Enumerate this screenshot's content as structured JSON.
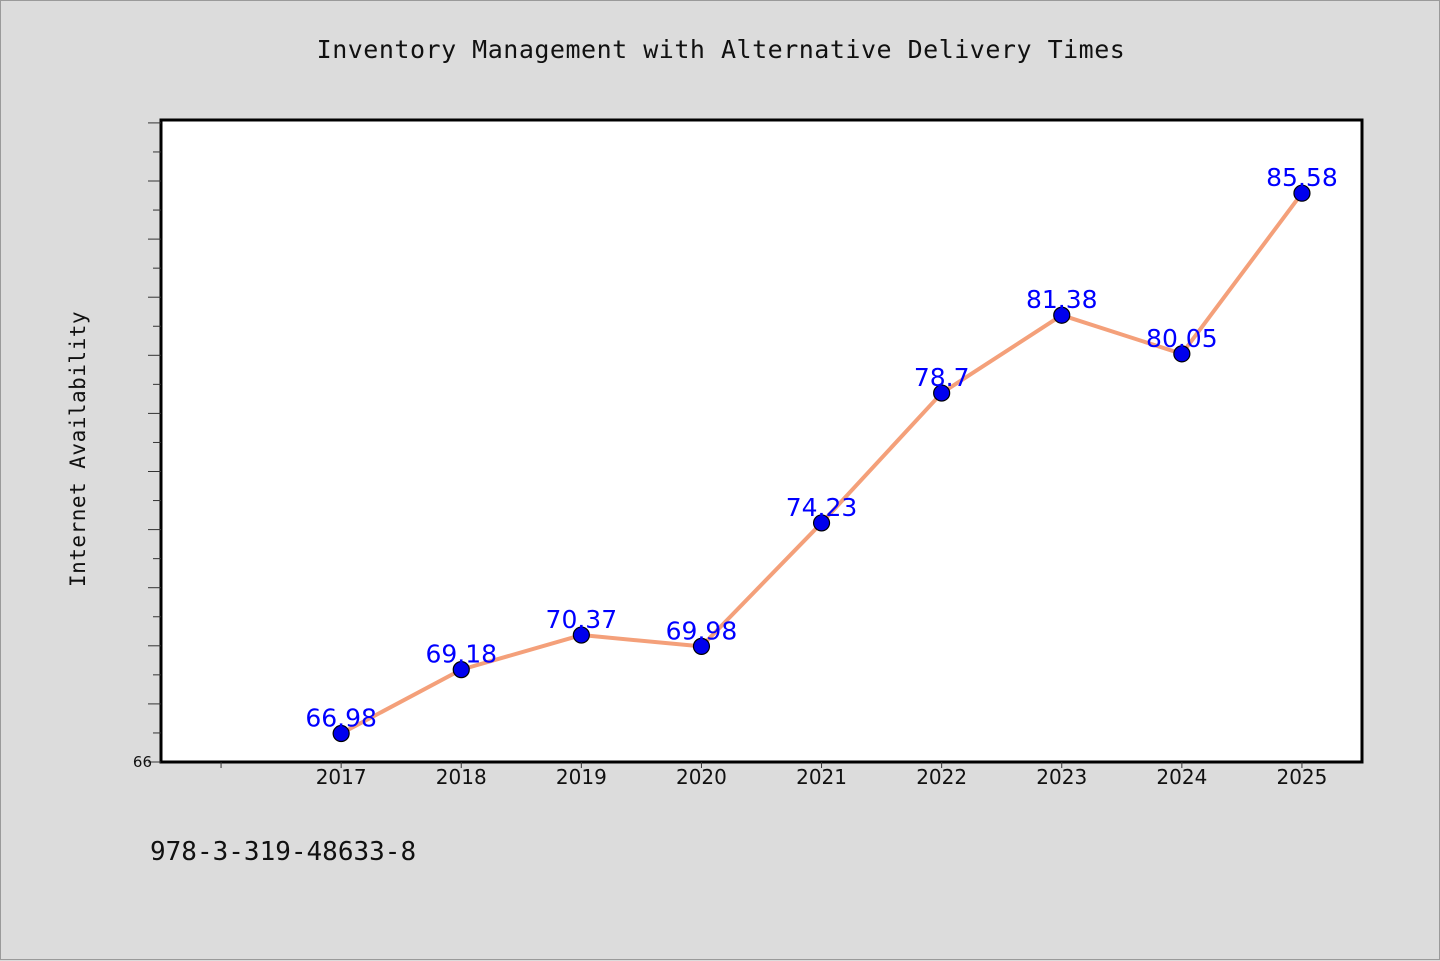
{
  "chart_data": {
    "type": "line",
    "title": "Inventory Management with Alternative Delivery Times",
    "xlabel": "",
    "ylabel": "Internet Availability",
    "categories": [
      "2017",
      "2018",
      "2019",
      "2020",
      "2021",
      "2022",
      "2023",
      "2024",
      "2025"
    ],
    "series": [
      {
        "values": [
          66.98,
          69.18,
          70.37,
          69.98,
          74.23,
          78.7,
          81.38,
          80.05,
          85.58
        ],
        "labels": [
          "66.98",
          "69.18",
          "70.37",
          "69.98",
          "74.23",
          "78.7",
          "81.38",
          "80.05",
          "85.58"
        ]
      }
    ],
    "xlim": [
      2015.5,
      2025.5
    ],
    "ylim": [
      66,
      88.1
    ],
    "y_tick_label": "66",
    "grid": false,
    "legend": "none",
    "line_color": "#f4a07a",
    "marker_color": "#0000ee",
    "label_color": "#0000ff"
  },
  "footer": {
    "isbn": "978-3-319-48633-8"
  },
  "page": {
    "background": "#dcdcdc",
    "plot_background": "#ffffff"
  }
}
